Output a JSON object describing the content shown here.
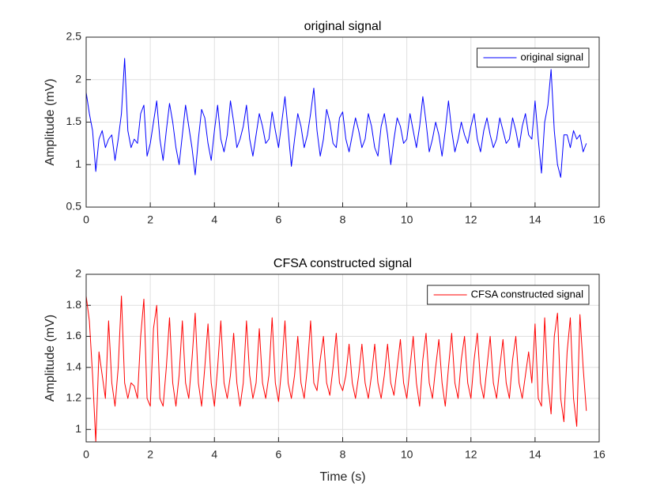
{
  "chart_data": [
    {
      "type": "line",
      "title": "original signal",
      "ylabel": "Amplitude (mV)",
      "grid": true,
      "legend": "upper right",
      "xlim": [
        0,
        16
      ],
      "xticks": [
        0,
        2,
        4,
        6,
        8,
        10,
        12,
        14,
        16
      ],
      "ylim": [
        0.5,
        2.5
      ],
      "yticks": [
        0.5,
        1,
        1.5,
        2,
        2.5
      ],
      "x": [
        0,
        0.1,
        0.2,
        0.3,
        0.4,
        0.5,
        0.6,
        0.7,
        0.8,
        0.9,
        1,
        1.1,
        1.2,
        1.3,
        1.4,
        1.5,
        1.6,
        1.7,
        1.8,
        1.9,
        2,
        2.1,
        2.2,
        2.3,
        2.4,
        2.5,
        2.6,
        2.7,
        2.8,
        2.9,
        3,
        3.1,
        3.2,
        3.3,
        3.4,
        3.5,
        3.6,
        3.7,
        3.8,
        3.9,
        4,
        4.1,
        4.2,
        4.3,
        4.4,
        4.5,
        4.6,
        4.7,
        4.8,
        4.9,
        5,
        5.1,
        5.2,
        5.3,
        5.4,
        5.5,
        5.6,
        5.7,
        5.8,
        5.9,
        6,
        6.1,
        6.2,
        6.3,
        6.4,
        6.5,
        6.6,
        6.7,
        6.8,
        6.9,
        7,
        7.1,
        7.2,
        7.3,
        7.4,
        7.5,
        7.6,
        7.7,
        7.8,
        7.9,
        8,
        8.1,
        8.2,
        8.3,
        8.4,
        8.5,
        8.6,
        8.7,
        8.8,
        8.9,
        9,
        9.1,
        9.2,
        9.3,
        9.4,
        9.5,
        9.6,
        9.7,
        9.8,
        9.9,
        10,
        10.1,
        10.2,
        10.3,
        10.4,
        10.5,
        10.6,
        10.7,
        10.8,
        10.9,
        11,
        11.1,
        11.2,
        11.3,
        11.4,
        11.5,
        11.6,
        11.7,
        11.8,
        11.9,
        12,
        12.1,
        12.2,
        12.3,
        12.4,
        12.5,
        12.6,
        12.7,
        12.8,
        12.9,
        13,
        13.1,
        13.2,
        13.3,
        13.4,
        13.5,
        13.6,
        13.7,
        13.8,
        13.9,
        14,
        14.1,
        14.2,
        14.3,
        14.4,
        14.5,
        14.6,
        14.7,
        14.8,
        14.9,
        15,
        15.1,
        15.2,
        15.3,
        15.4,
        15.5,
        15.6
      ],
      "series": [
        {
          "name": "original signal",
          "color": "#0000ff",
          "values": [
            1.85,
            1.6,
            1.4,
            0.92,
            1.3,
            1.4,
            1.2,
            1.3,
            1.35,
            1.05,
            1.3,
            1.6,
            2.25,
            1.4,
            1.2,
            1.3,
            1.25,
            1.6,
            1.7,
            1.1,
            1.25,
            1.5,
            1.75,
            1.3,
            1.05,
            1.4,
            1.72,
            1.5,
            1.2,
            1.0,
            1.35,
            1.7,
            1.45,
            1.2,
            0.88,
            1.3,
            1.65,
            1.55,
            1.25,
            1.05,
            1.4,
            1.7,
            1.3,
            1.15,
            1.35,
            1.75,
            1.5,
            1.2,
            1.3,
            1.45,
            1.7,
            1.3,
            1.1,
            1.35,
            1.6,
            1.45,
            1.25,
            1.3,
            1.62,
            1.4,
            1.2,
            1.5,
            1.8,
            1.4,
            0.98,
            1.3,
            1.6,
            1.45,
            1.2,
            1.35,
            1.6,
            1.9,
            1.4,
            1.1,
            1.3,
            1.65,
            1.5,
            1.25,
            1.2,
            1.55,
            1.62,
            1.3,
            1.15,
            1.35,
            1.55,
            1.4,
            1.2,
            1.3,
            1.6,
            1.45,
            1.2,
            1.1,
            1.45,
            1.6,
            1.35,
            1.0,
            1.3,
            1.55,
            1.45,
            1.25,
            1.3,
            1.6,
            1.4,
            1.2,
            1.45,
            1.8,
            1.5,
            1.15,
            1.3,
            1.5,
            1.35,
            1.1,
            1.4,
            1.75,
            1.4,
            1.15,
            1.3,
            1.5,
            1.35,
            1.25,
            1.45,
            1.6,
            1.3,
            1.15,
            1.4,
            1.55,
            1.35,
            1.2,
            1.3,
            1.55,
            1.4,
            1.25,
            1.3,
            1.55,
            1.4,
            1.2,
            1.45,
            1.6,
            1.35,
            1.3,
            1.75,
            1.3,
            0.9,
            1.5,
            1.7,
            2.12,
            1.4,
            1.0,
            0.85,
            1.35,
            1.35,
            1.2,
            1.4,
            1.3,
            1.35,
            1.15,
            1.25
          ]
        }
      ]
    },
    {
      "type": "line",
      "title": "CFSA constructed signal",
      "ylabel": "Amplitude (mV)",
      "xlabel": "Time (s)",
      "grid": true,
      "legend": "upper right",
      "xlim": [
        0,
        16
      ],
      "xticks": [
        0,
        2,
        4,
        6,
        8,
        10,
        12,
        14,
        16
      ],
      "ylim": [
        0.92,
        2
      ],
      "yticks": [
        1,
        1.2,
        1.4,
        1.6,
        1.8,
        2
      ],
      "x": [
        0,
        0.1,
        0.2,
        0.3,
        0.4,
        0.5,
        0.6,
        0.7,
        0.8,
        0.9,
        1,
        1.1,
        1.2,
        1.3,
        1.4,
        1.5,
        1.6,
        1.7,
        1.8,
        1.9,
        2,
        2.1,
        2.2,
        2.3,
        2.4,
        2.5,
        2.6,
        2.7,
        2.8,
        2.9,
        3,
        3.1,
        3.2,
        3.3,
        3.4,
        3.5,
        3.6,
        3.7,
        3.8,
        3.9,
        4,
        4.1,
        4.2,
        4.3,
        4.4,
        4.5,
        4.6,
        4.7,
        4.8,
        4.9,
        5,
        5.1,
        5.2,
        5.3,
        5.4,
        5.5,
        5.6,
        5.7,
        5.8,
        5.9,
        6,
        6.1,
        6.2,
        6.3,
        6.4,
        6.5,
        6.6,
        6.7,
        6.8,
        6.9,
        7,
        7.1,
        7.2,
        7.3,
        7.4,
        7.5,
        7.6,
        7.7,
        7.8,
        7.9,
        8,
        8.1,
        8.2,
        8.3,
        8.4,
        8.5,
        8.6,
        8.7,
        8.8,
        8.9,
        9,
        9.1,
        9.2,
        9.3,
        9.4,
        9.5,
        9.6,
        9.7,
        9.8,
        9.9,
        10,
        10.1,
        10.2,
        10.3,
        10.4,
        10.5,
        10.6,
        10.7,
        10.8,
        10.9,
        11,
        11.1,
        11.2,
        11.3,
        11.4,
        11.5,
        11.6,
        11.7,
        11.8,
        11.9,
        12,
        12.1,
        12.2,
        12.3,
        12.4,
        12.5,
        12.6,
        12.7,
        12.8,
        12.9,
        13,
        13.1,
        13.2,
        13.3,
        13.4,
        13.5,
        13.6,
        13.7,
        13.8,
        13.9,
        14,
        14.1,
        14.2,
        14.3,
        14.4,
        14.5,
        14.6,
        14.7,
        14.8,
        14.9,
        15,
        15.1,
        15.2,
        15.3,
        15.4,
        15.5,
        15.6
      ],
      "series": [
        {
          "name": "CFSA constructed signal",
          "color": "#ff0000",
          "values": [
            1.86,
            1.7,
            1.35,
            0.92,
            1.5,
            1.35,
            1.2,
            1.7,
            1.3,
            1.15,
            1.4,
            1.86,
            1.3,
            1.2,
            1.3,
            1.28,
            1.2,
            1.6,
            1.84,
            1.2,
            1.15,
            1.65,
            1.8,
            1.2,
            1.15,
            1.4,
            1.72,
            1.3,
            1.15,
            1.35,
            1.7,
            1.3,
            1.2,
            1.45,
            1.75,
            1.3,
            1.15,
            1.4,
            1.68,
            1.3,
            1.15,
            1.4,
            1.7,
            1.3,
            1.2,
            1.35,
            1.62,
            1.3,
            1.15,
            1.3,
            1.7,
            1.35,
            1.2,
            1.3,
            1.65,
            1.3,
            1.2,
            1.35,
            1.72,
            1.3,
            1.18,
            1.4,
            1.7,
            1.3,
            1.2,
            1.35,
            1.6,
            1.3,
            1.2,
            1.4,
            1.7,
            1.3,
            1.25,
            1.45,
            1.6,
            1.3,
            1.22,
            1.4,
            1.62,
            1.3,
            1.25,
            1.35,
            1.55,
            1.3,
            1.2,
            1.35,
            1.55,
            1.3,
            1.2,
            1.35,
            1.55,
            1.3,
            1.2,
            1.35,
            1.55,
            1.3,
            1.22,
            1.4,
            1.58,
            1.3,
            1.2,
            1.4,
            1.6,
            1.3,
            1.15,
            1.45,
            1.62,
            1.3,
            1.2,
            1.4,
            1.58,
            1.3,
            1.15,
            1.4,
            1.62,
            1.3,
            1.2,
            1.45,
            1.6,
            1.3,
            1.2,
            1.45,
            1.62,
            1.3,
            1.2,
            1.4,
            1.6,
            1.3,
            1.2,
            1.4,
            1.58,
            1.3,
            1.2,
            1.45,
            1.6,
            1.3,
            1.2,
            1.35,
            1.5,
            1.3,
            1.68,
            1.2,
            1.15,
            1.72,
            1.3,
            1.1,
            1.6,
            1.75,
            1.2,
            1.05,
            1.5,
            1.72,
            1.2,
            1.02,
            1.74,
            1.4,
            1.12
          ]
        }
      ]
    }
  ]
}
